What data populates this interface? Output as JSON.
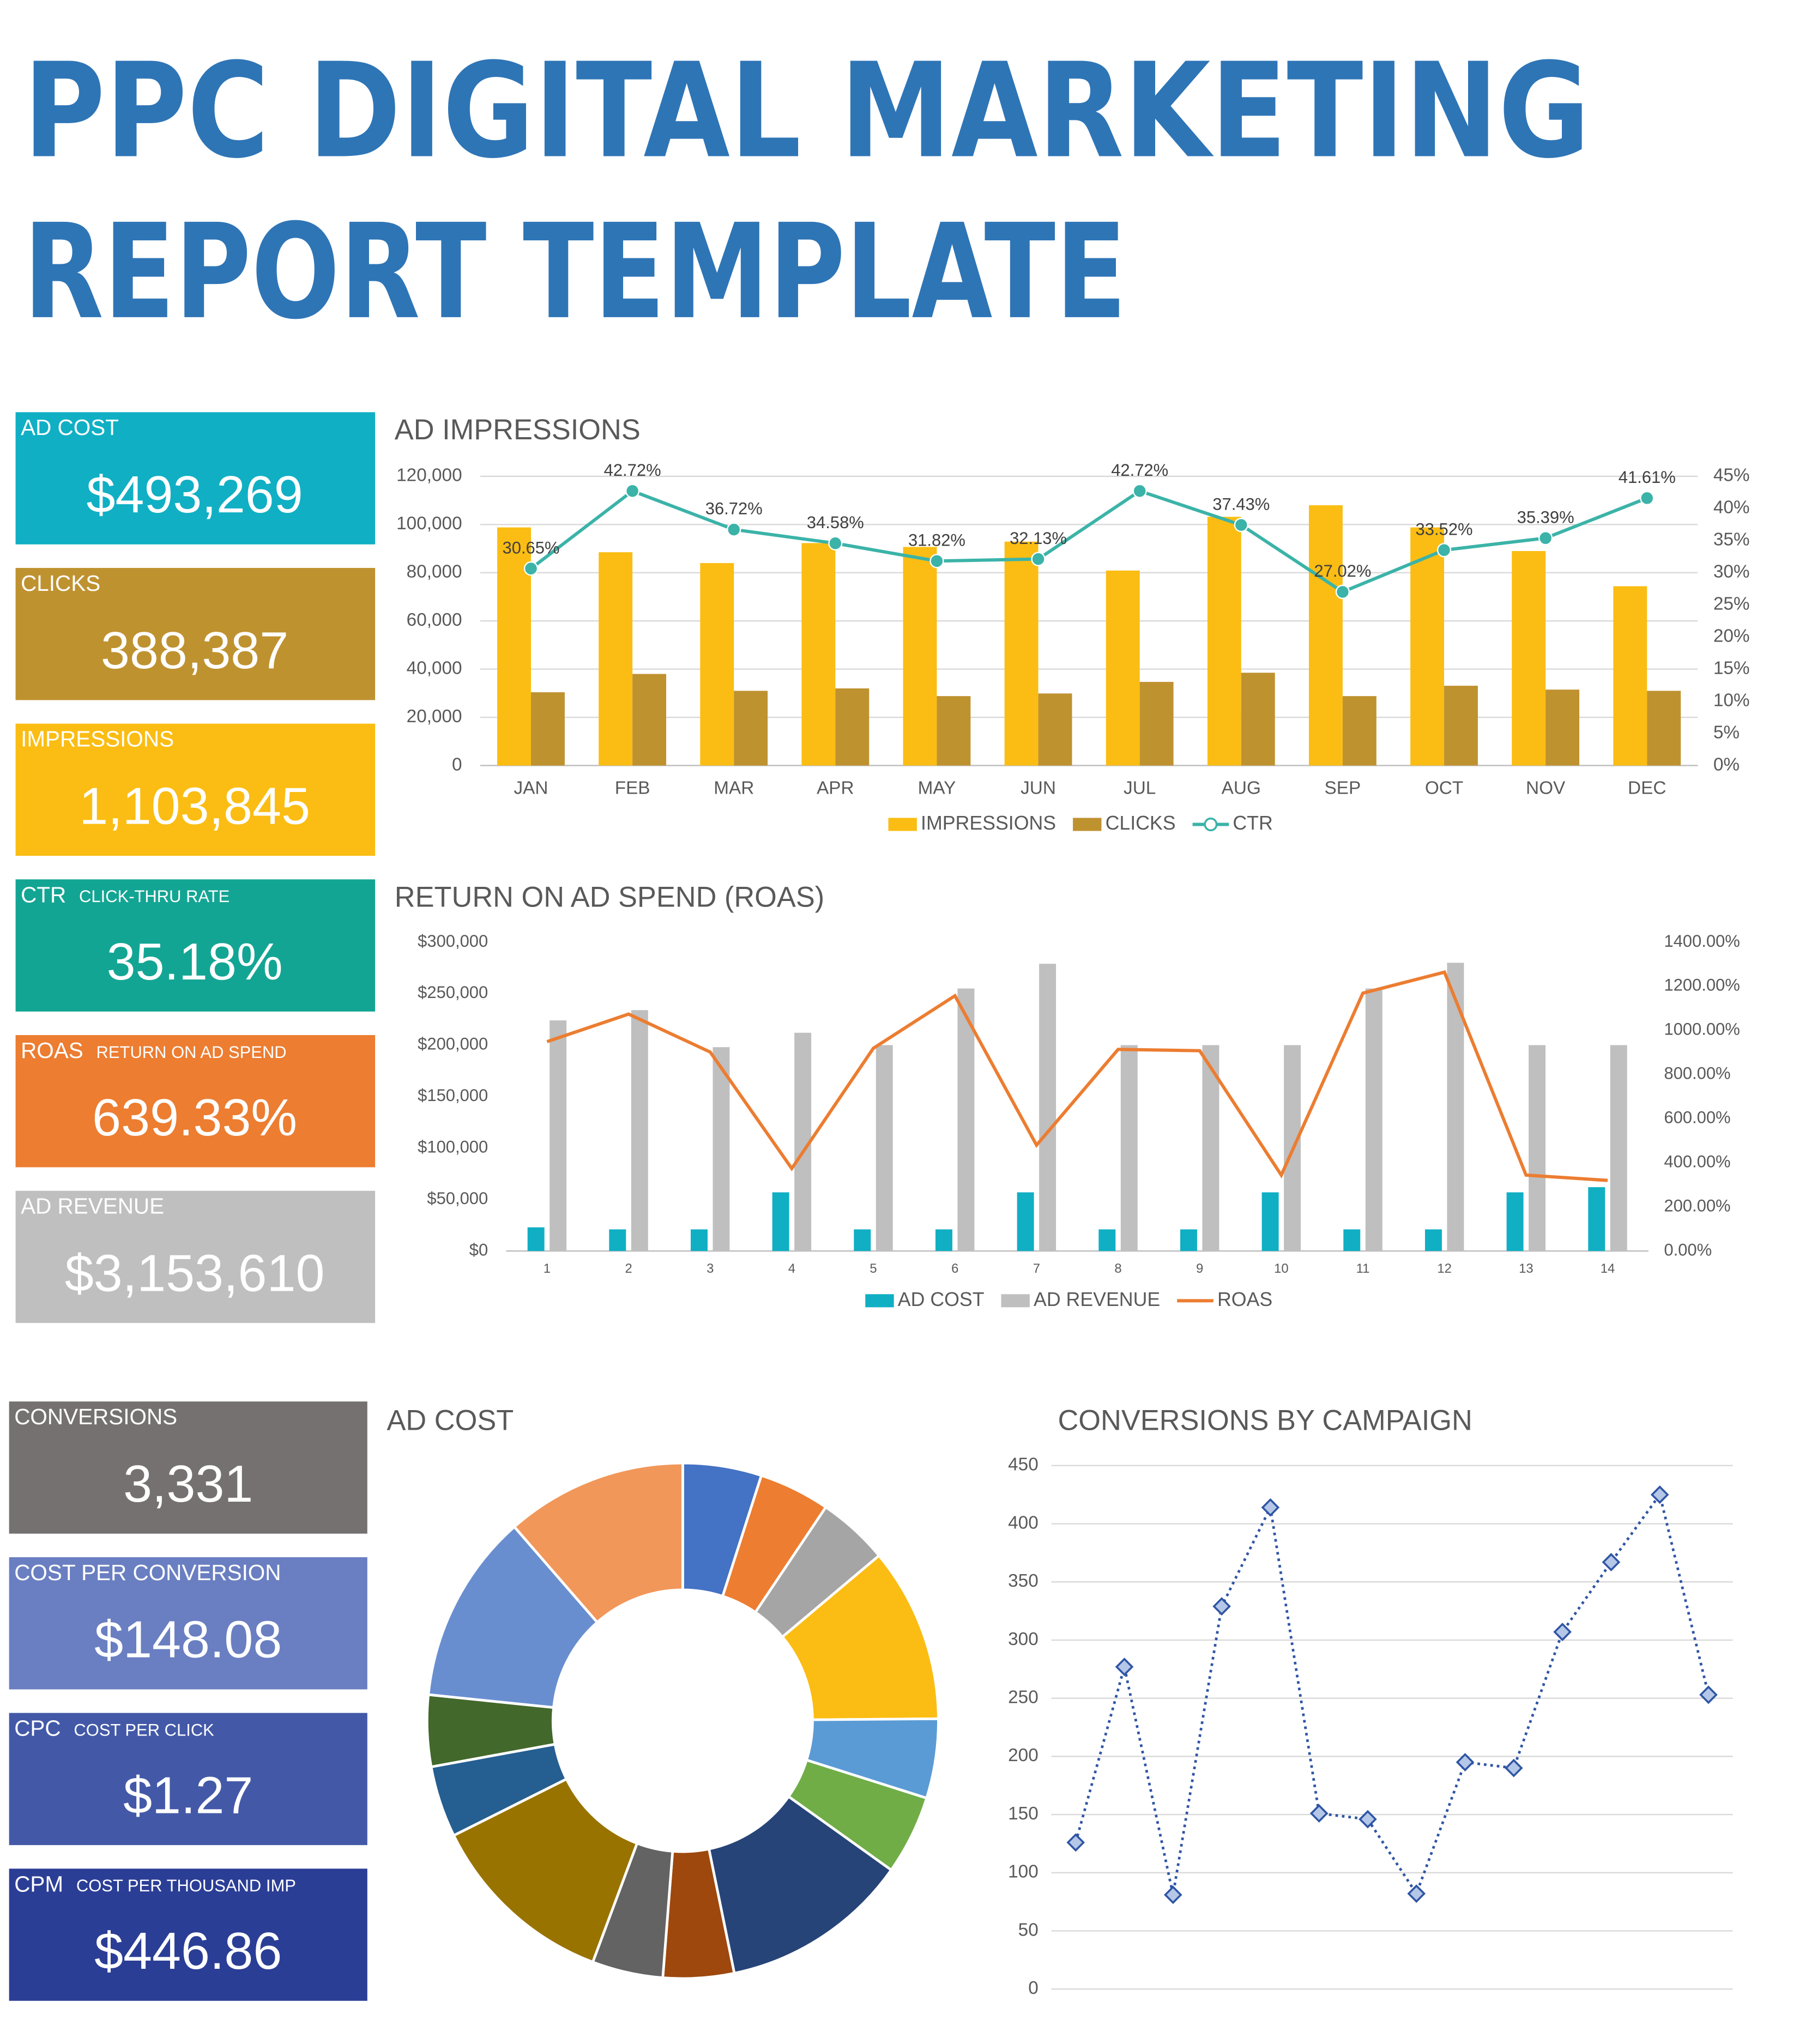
{
  "title_lines": [
    "PPC DIGITAL MARKETING",
    "REPORT TEMPLATE"
  ],
  "kpis": [
    {
      "label": "AD COST",
      "value": "$493,269",
      "color": "#10afc4"
    },
    {
      "label": "CLICKS",
      "value": "388,387",
      "color": "#bf9230"
    },
    {
      "label": "IMPRESSIONS",
      "value": "1,103,845",
      "color": "#fbbd13"
    },
    {
      "label": "CTR",
      "sublabel": "CLICK-THRU RATE",
      "value": "35.18%",
      "color": "#13a593"
    },
    {
      "label": "ROAS",
      "sublabel": "RETURN ON AD SPEND",
      "value": "639.33%",
      "color": "#ec7d31"
    },
    {
      "label": "AD REVENUE",
      "value": "$3,153,610",
      "color": "#bfbfbf"
    },
    {
      "label": "CONVERSIONS",
      "value": "3,331",
      "color": "#767171"
    },
    {
      "label": "COST PER CONVERSION",
      "value": "$148.08",
      "color": "#6a7fc1"
    },
    {
      "label": "CPC",
      "sublabel": "COST PER CLICK",
      "value": "$1.27",
      "color": "#4359a8"
    },
    {
      "label": "CPM",
      "sublabel": "COST PER THOUSAND IMP",
      "value": "$446.86",
      "color": "#2b3e96"
    }
  ],
  "chart_data": [
    {
      "type": "combo",
      "title": "AD IMPRESSIONS",
      "grid": true,
      "categories": [
        "JAN",
        "FEB",
        "MAR",
        "APR",
        "MAY",
        "JUN",
        "JUL",
        "AUG",
        "SEP",
        "OCT",
        "NOV",
        "DEC"
      ],
      "series": [
        {
          "name": "IMPRESSIONS",
          "kind": "bar",
          "color": "#fbbd13",
          "values": [
            98800,
            88500,
            84000,
            92300,
            90700,
            92900,
            80900,
            103200,
            108000,
            98800,
            89000,
            74400
          ]
        },
        {
          "name": "CLICKS",
          "kind": "bar",
          "color": "#bf9230",
          "values": [
            30400,
            38000,
            31000,
            32000,
            28800,
            29900,
            34700,
            38500,
            28800,
            33100,
            31500,
            31000
          ]
        },
        {
          "name": "CTR",
          "kind": "line",
          "axis": "y2",
          "marker": "circle",
          "color": "#3bb3a8",
          "values": [
            30.65,
            42.72,
            36.72,
            34.58,
            31.82,
            32.13,
            42.72,
            37.43,
            27.02,
            33.52,
            35.39,
            41.61
          ],
          "value_labels": [
            "30.65%",
            "42.72%",
            "36.72%",
            "34.58%",
            "31.82%",
            "32.13%",
            "42.72%",
            "37.43%",
            "27.02%",
            "33.52%",
            "35.39%",
            "41.61%"
          ]
        }
      ],
      "ylim": [
        0,
        120000
      ],
      "yticks": [
        0,
        {
          "value": 20000,
          "label": "20,000"
        },
        {
          "value": 40000,
          "label": "40,000"
        },
        {
          "value": 60000,
          "label": "60,000"
        },
        {
          "value": 80000,
          "label": "80,000"
        },
        {
          "value": 100000,
          "label": "100,000"
        },
        {
          "value": 120000,
          "label": "120,000"
        }
      ],
      "y2lim": [
        0,
        45
      ],
      "y2ticks": [
        {
          "value": 0,
          "label": "0%"
        },
        {
          "value": 5,
          "label": "5%"
        },
        {
          "value": 10,
          "label": "10%"
        },
        {
          "value": 15,
          "label": "15%"
        },
        {
          "value": 20,
          "label": "20%"
        },
        {
          "value": 25,
          "label": "25%"
        },
        {
          "value": 30,
          "label": "30%"
        },
        {
          "value": 35,
          "label": "35%"
        },
        {
          "value": 40,
          "label": "40%"
        },
        {
          "value": 45,
          "label": "45%"
        }
      ]
    },
    {
      "type": "combo",
      "title": "RETURN ON AD SPEND (ROAS)",
      "grid": false,
      "categories": [
        "1",
        "2",
        "3",
        "4",
        "5",
        "6",
        "7",
        "8",
        "9",
        "10",
        "11",
        "12",
        "13",
        "14"
      ],
      "series": [
        {
          "name": "AD COST",
          "kind": "bar",
          "color": "#10afc4",
          "values": [
            23000,
            21000,
            21000,
            57000,
            21000,
            21000,
            57000,
            21000,
            21000,
            57000,
            21000,
            21000,
            57000,
            62000
          ]
        },
        {
          "name": "AD REVENUE",
          "kind": "bar",
          "color": "#bfbfbf",
          "values": [
            224000,
            234000,
            198000,
            212000,
            200000,
            255000,
            279000,
            200000,
            200000,
            200000,
            255000,
            280000,
            200000,
            200000
          ]
        },
        {
          "name": "ROAS",
          "kind": "line",
          "axis": "y2",
          "color": "#ec7d31",
          "values": [
            949,
            1074,
            902,
            374,
            919,
            1157,
            480,
            914,
            908,
            344,
            1169,
            1264,
            344,
            320
          ]
        }
      ],
      "ylim": [
        0,
        300000
      ],
      "yticks": [
        {
          "value": 0,
          "label": "$0"
        },
        {
          "value": 50000,
          "label": "$50,000"
        },
        {
          "value": 100000,
          "label": "$100,000"
        },
        {
          "value": 150000,
          "label": "$150,000"
        },
        {
          "value": 200000,
          "label": "$200,000"
        },
        {
          "value": 250000,
          "label": "$250,000"
        },
        {
          "value": 300000,
          "label": "$300,000"
        }
      ],
      "y2lim": [
        0,
        1400
      ],
      "y2ticks": [
        {
          "value": 0,
          "label": "0.00%"
        },
        {
          "value": 200,
          "label": "200.00%"
        },
        {
          "value": 400,
          "label": "400.00%"
        },
        {
          "value": 600,
          "label": "600.00%"
        },
        {
          "value": 800,
          "label": "800.00%"
        },
        {
          "value": 1000,
          "label": "1000.00%"
        },
        {
          "value": 1200,
          "label": "1200.00%"
        },
        {
          "value": 1400,
          "label": "1400.00%"
        }
      ]
    },
    {
      "type": "donut",
      "title": "AD COST",
      "values": [
        5,
        4.5,
        4.5,
        11,
        5,
        5,
        12,
        4.5,
        4.5,
        12,
        4.5,
        4.5,
        12,
        11.5
      ],
      "colors": [
        "#4472c4",
        "#ed7d31",
        "#a5a5a5",
        "#fbbd13",
        "#5b9bd5",
        "#70ad47",
        "#264478",
        "#9e480e",
        "#636363",
        "#997300",
        "#255e91",
        "#43682b",
        "#698ed0",
        "#f1975a"
      ]
    },
    {
      "type": "line",
      "title": "CONVERSIONS BY CAMPAIGN",
      "grid": true,
      "marker": "diamond",
      "color": "#2f55a4",
      "values": [
        126,
        277,
        81,
        329,
        414,
        151,
        146,
        82,
        195,
        190,
        307,
        367,
        425,
        253
      ],
      "ylim": [
        0,
        450
      ],
      "yticks": [
        0,
        50,
        100,
        150,
        200,
        250,
        300,
        350,
        400,
        450
      ]
    }
  ]
}
